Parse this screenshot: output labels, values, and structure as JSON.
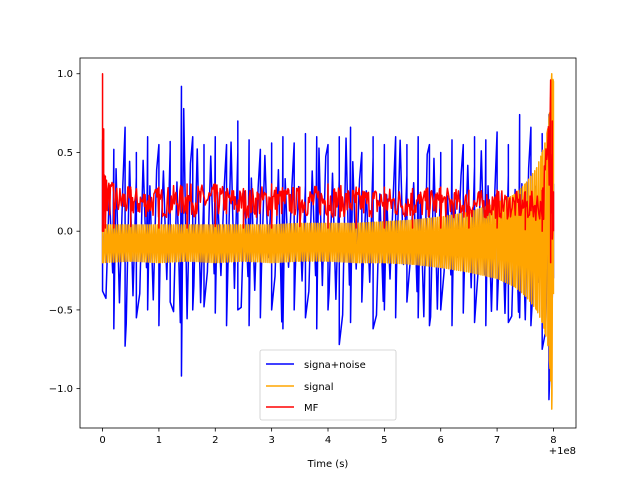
{
  "chart_data": {
    "type": "line",
    "title": "",
    "xlabel": "Time (s)",
    "ylabel": "",
    "x_offset_label": "+1e8",
    "xlim": [
      -0.4,
      8.4
    ],
    "ylim": [
      -1.25,
      1.1
    ],
    "x_ticks": [
      0,
      1,
      2,
      3,
      4,
      5,
      6,
      7,
      8
    ],
    "x_tick_labels": [
      "0",
      "1",
      "2",
      "3",
      "4",
      "5",
      "6",
      "7",
      "8"
    ],
    "y_ticks": [
      1.0,
      0.5,
      0.0,
      -0.5,
      -1.0
    ],
    "y_tick_labels": [
      "1.0",
      "0.5",
      "0.0",
      "−0.5",
      "−1.0"
    ],
    "grid": false,
    "legend_position": "lower center",
    "series": [
      {
        "name": "signa+noise",
        "color": "#0000ff",
        "x": [
          0.0,
          0.2,
          0.4,
          0.6,
          0.8,
          1.0,
          1.2,
          1.4,
          1.6,
          1.8,
          2.0,
          2.2,
          2.4,
          2.6,
          2.8,
          3.0,
          3.2,
          3.4,
          3.6,
          3.8,
          4.0,
          4.2,
          4.4,
          4.6,
          4.8,
          5.0,
          5.2,
          5.4,
          5.6,
          5.8,
          6.0,
          6.2,
          6.4,
          6.6,
          6.8,
          7.0,
          7.2,
          7.4,
          7.6,
          7.8,
          7.92,
          8.0
        ],
        "upper": [
          0.58,
          0.52,
          0.66,
          0.5,
          0.6,
          0.55,
          0.57,
          0.92,
          0.6,
          0.55,
          0.6,
          0.55,
          0.7,
          0.58,
          0.52,
          0.56,
          0.6,
          0.56,
          0.62,
          0.6,
          0.55,
          0.6,
          0.66,
          0.5,
          0.6,
          0.55,
          0.6,
          0.55,
          0.6,
          0.55,
          0.5,
          0.58,
          0.55,
          0.6,
          0.58,
          0.63,
          0.55,
          0.74,
          0.66,
          0.62,
          0.74,
          0.3
        ],
        "lower": [
          -0.38,
          -0.62,
          -0.73,
          -0.55,
          -0.5,
          -0.6,
          -0.45,
          -0.92,
          -0.5,
          -0.48,
          -0.52,
          -0.6,
          -0.5,
          -0.6,
          -0.55,
          -0.5,
          -0.62,
          -0.5,
          -0.55,
          -0.62,
          -0.5,
          -0.72,
          -0.58,
          -0.45,
          -0.62,
          -0.5,
          -0.55,
          -0.45,
          -0.55,
          -0.6,
          -0.5,
          -0.6,
          -0.52,
          -0.58,
          -0.6,
          -0.5,
          -0.58,
          -0.55,
          -0.6,
          -0.75,
          -1.07,
          -0.3
        ]
      },
      {
        "name": "signal",
        "color": "#ffa500",
        "x": [
          0.0,
          0.5,
          1.0,
          1.5,
          2.0,
          2.5,
          3.0,
          3.5,
          4.0,
          4.5,
          5.0,
          5.5,
          6.0,
          6.5,
          7.0,
          7.3,
          7.5,
          7.7,
          7.8,
          7.85,
          7.9,
          7.93,
          7.95,
          7.97,
          8.0
        ],
        "upper": [
          0.04,
          0.04,
          0.04,
          0.04,
          0.04,
          0.04,
          0.04,
          0.05,
          0.05,
          0.05,
          0.06,
          0.07,
          0.09,
          0.12,
          0.18,
          0.23,
          0.3,
          0.4,
          0.5,
          0.56,
          0.65,
          0.75,
          0.85,
          1.0,
          0.95
        ],
        "lower": [
          -0.2,
          -0.19,
          -0.2,
          -0.19,
          -0.2,
          -0.19,
          -0.2,
          -0.19,
          -0.19,
          -0.2,
          -0.2,
          -0.21,
          -0.23,
          -0.26,
          -0.3,
          -0.35,
          -0.41,
          -0.5,
          -0.58,
          -0.64,
          -0.72,
          -0.82,
          -0.95,
          -1.13,
          -0.4
        ]
      },
      {
        "name": "MF",
        "color": "#ff0000",
        "x": [
          0.0,
          0.02,
          0.05,
          0.2,
          0.5,
          1.0,
          1.5,
          2.0,
          2.5,
          3.0,
          3.5,
          4.0,
          4.5,
          5.0,
          5.5,
          6.0,
          6.5,
          7.0,
          7.5,
          7.8,
          7.95,
          7.98,
          8.0
        ],
        "upper": [
          1.0,
          0.65,
          0.35,
          0.3,
          0.28,
          0.28,
          0.3,
          0.3,
          0.27,
          0.3,
          0.28,
          0.3,
          0.28,
          0.28,
          0.27,
          0.28,
          0.26,
          0.26,
          0.25,
          0.26,
          0.96,
          0.7,
          0.25
        ],
        "lower": [
          0.0,
          0.0,
          0.02,
          0.02,
          0.03,
          0.02,
          0.02,
          0.03,
          0.02,
          0.02,
          0.03,
          0.02,
          0.02,
          0.02,
          0.02,
          0.02,
          0.02,
          0.02,
          0.01,
          0.0,
          -0.2,
          -0.05,
          0.0
        ]
      }
    ]
  }
}
